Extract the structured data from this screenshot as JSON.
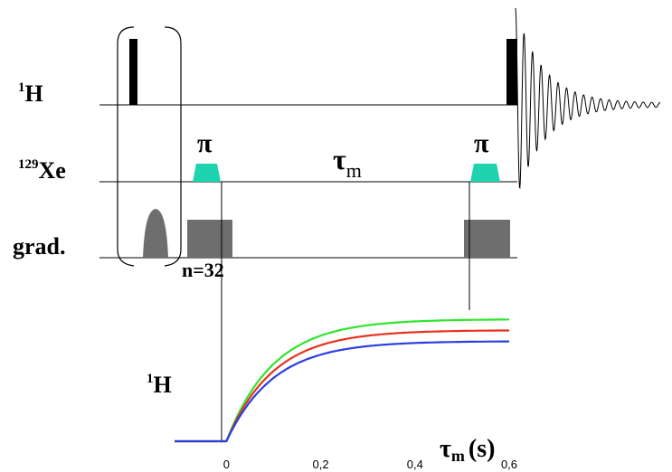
{
  "sequence": {
    "channels": [
      {
        "base": "1",
        "label": "H"
      },
      {
        "base": "129",
        "label": "Xe"
      },
      {
        "label": "grad."
      }
    ],
    "pulse_label_1": "π",
    "pulse_label_2": "π",
    "delay_greek": "τ",
    "delay_sub": "m",
    "loop_label": "n=32"
  },
  "colors": {
    "rf_pulse": "#000000",
    "xe_pulse": "#1dd3b0",
    "gradient": "#6e6e6e",
    "green": "#2ee52e",
    "red": "#e8321e",
    "blue": "#2a3fe0"
  },
  "chart_data": {
    "type": "line",
    "ylabel_base": "1",
    "ylabel_label": "H",
    "xlabel_greek": "τ",
    "xlabel_sub": "m",
    "xlabel_unit": "(s)",
    "x_ticks": [
      "0",
      "0,2",
      "0,4",
      "0,6"
    ],
    "x_tick_values": [
      0,
      0.2,
      0.4,
      0.6
    ],
    "xlim": [
      -0.11,
      0.6
    ],
    "ylim": [
      0,
      1.05
    ],
    "series": [
      {
        "color": "#2ee52e",
        "plateau": 1.0,
        "rate": 10.0
      },
      {
        "color": "#e8321e",
        "plateau": 0.91,
        "rate": 10.0
      },
      {
        "color": "#2a3fe0",
        "plateau": 0.82,
        "rate": 10.0
      }
    ]
  }
}
